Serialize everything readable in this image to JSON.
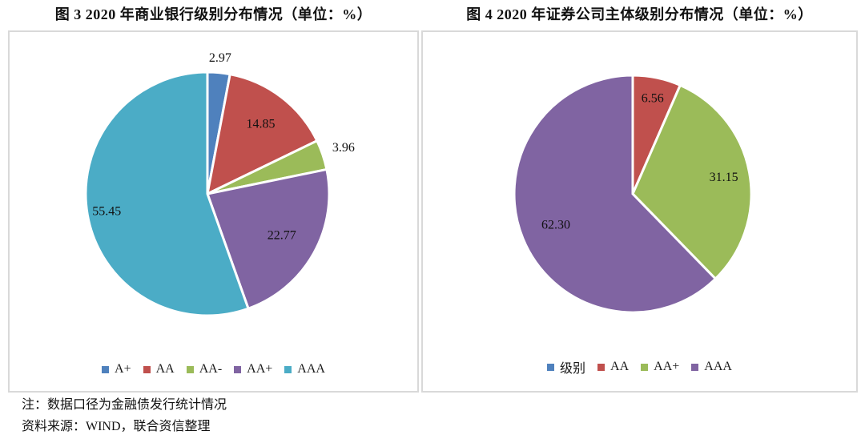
{
  "notes": {
    "line1": "注：数据口径为金融债发行统计情况",
    "line2": "资料来源：WIND，联合资信整理"
  },
  "colors": {
    "blue": "#4F81BD",
    "red": "#C0504D",
    "green": "#9BBB59",
    "purple": "#8064A2",
    "cyan": "#4BACC6",
    "panel_border": "#D9D9D9",
    "slice_border": "#FFFFFF",
    "text": "#111111"
  },
  "chart_data": [
    {
      "type": "pie",
      "figure_label": "图 3",
      "title": "图 3  2020 年商业银行级别分布情况（单位：%）",
      "unit": "%",
      "categories": [
        "A+",
        "AA",
        "AA-",
        "AA+",
        "AAA"
      ],
      "values": [
        2.97,
        14.85,
        3.96,
        22.77,
        55.45
      ],
      "value_labels": [
        "2.97",
        "14.85",
        "3.96",
        "22.77",
        "55.45"
      ],
      "colors": [
        "#4F81BD",
        "#C0504D",
        "#9BBB59",
        "#8064A2",
        "#4BACC6"
      ],
      "start_angle": "12-oclock-clockwise",
      "legend_position": "bottom",
      "label_layout": [
        {
          "rf": 1.12,
          "outside": true
        },
        {
          "rf": 0.72,
          "outside": false
        },
        {
          "rf": 1.18,
          "outside": true
        },
        {
          "rf": 0.7,
          "outside": false
        },
        {
          "rf": 0.84,
          "outside": false
        }
      ]
    },
    {
      "type": "pie",
      "figure_label": "图 4",
      "title": "图 4  2020 年证券公司主体级别分布情况（单位：%）",
      "unit": "%",
      "categories": [
        "级别",
        "AA",
        "AA+",
        "AAA"
      ],
      "values": [
        0,
        6.56,
        31.15,
        62.3
      ],
      "value_labels": [
        "",
        "6.56",
        "31.15",
        "62.30"
      ],
      "colors": [
        "#4F81BD",
        "#C0504D",
        "#9BBB59",
        "#8064A2"
      ],
      "start_angle": "12-oclock-clockwise",
      "legend_position": "bottom",
      "label_layout": [
        {
          "rf": 0,
          "outside": false
        },
        {
          "rf": 0.82,
          "outside": false
        },
        {
          "rf": 0.78,
          "outside": false
        },
        {
          "rf": 0.7,
          "outside": false
        }
      ]
    }
  ]
}
